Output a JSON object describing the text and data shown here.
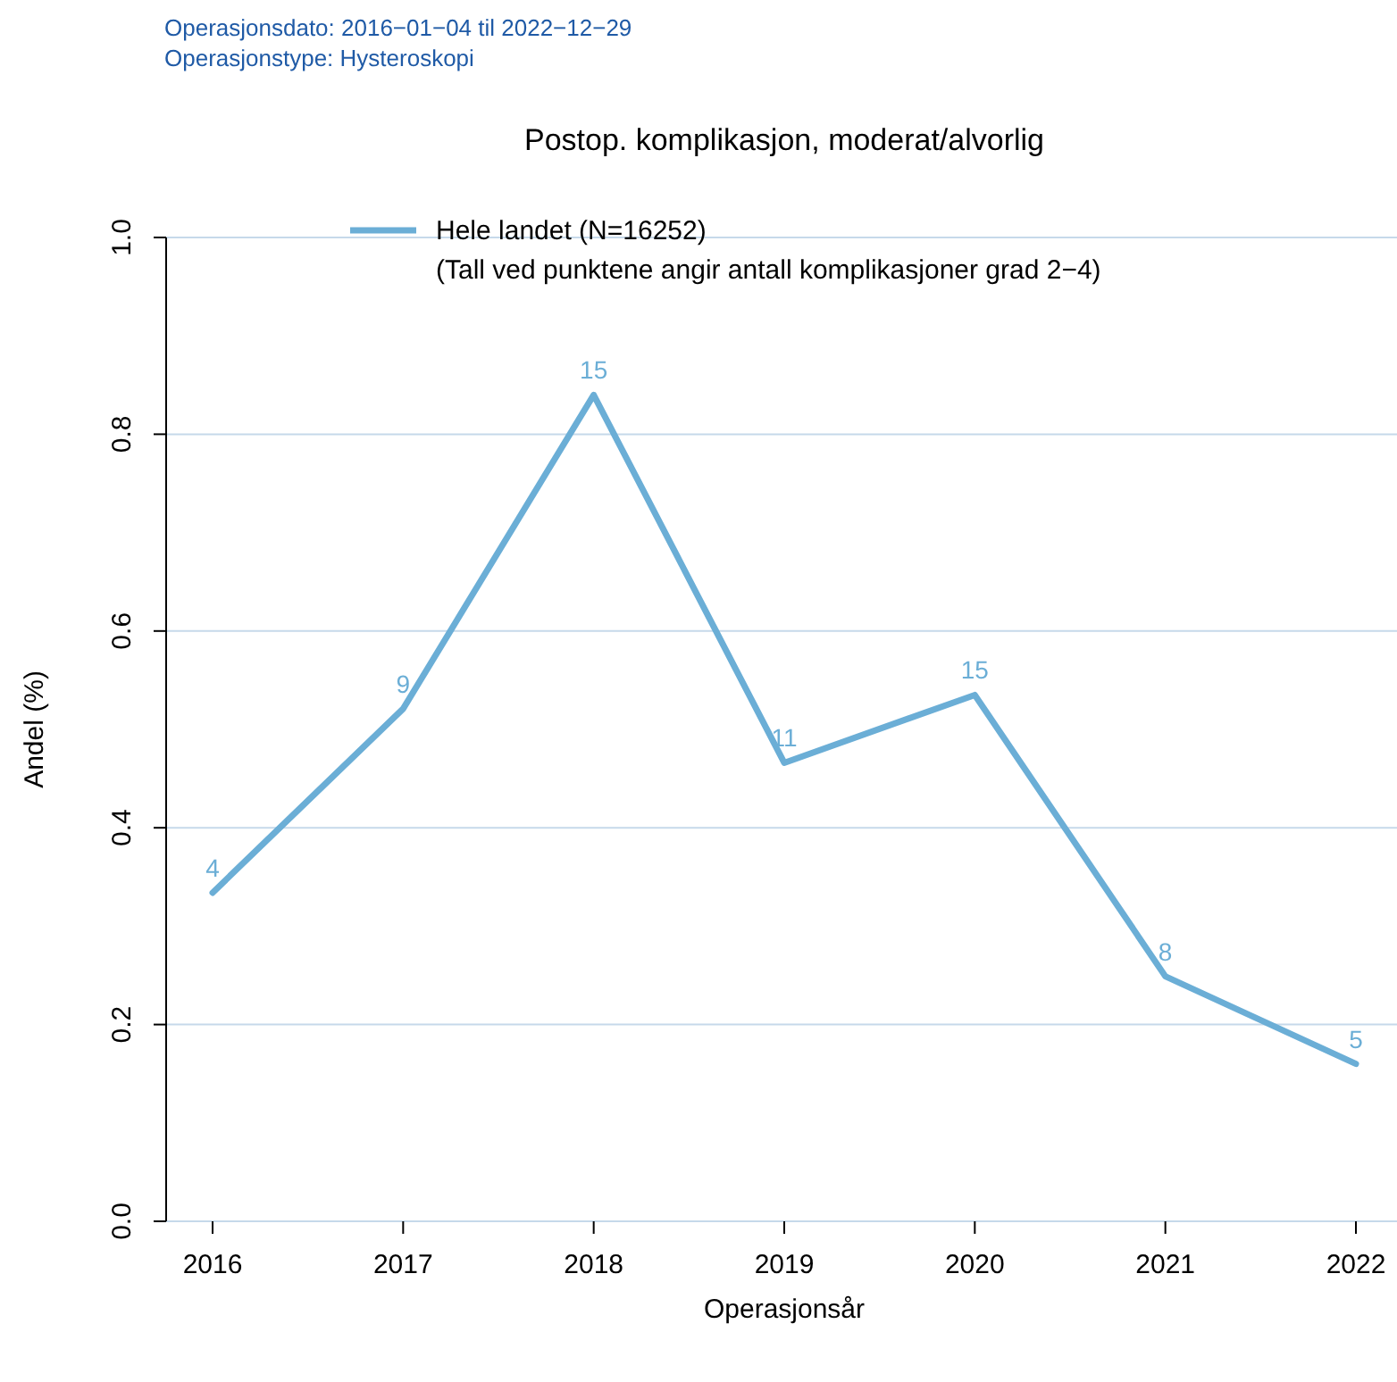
{
  "chart_data": {
    "type": "line",
    "title": "Postop. komplikasjon, moderat/alvorlig",
    "xlabel": "Operasjonsår",
    "ylabel": "Andel (%)",
    "annotations": [
      "Operasjonsdato: 2016−01−04 til 2022−12−29",
      "Operasjonstype: Hysteroskopi",
      "(Tall ved punktene angir antall komplikasjoner grad 2−4)",
      {
        "text": "4",
        "x": "2016",
        "y": 0.334
      },
      {
        "text": "9",
        "x": "2017",
        "y": 0.521
      },
      {
        "text": "15",
        "x": "2018",
        "y": 0.84
      },
      {
        "text": "11",
        "x": "2019",
        "y": 0.466
      },
      {
        "text": "15",
        "x": "2020",
        "y": 0.535
      },
      {
        "text": "8",
        "x": "2021",
        "y": 0.249
      },
      {
        "text": "5",
        "x": "2022",
        "y": 0.16
      }
    ],
    "categories": [
      "2016",
      "2017",
      "2018",
      "2019",
      "2020",
      "2021",
      "2022"
    ],
    "series": [
      {
        "name": "Hele landet (N=16252)",
        "color": "#6baed6",
        "values": [
          0.334,
          0.521,
          0.84,
          0.466,
          0.535,
          0.249,
          0.16
        ]
      }
    ],
    "ylim": [
      0,
      1
    ],
    "yticks": [
      {
        "value": 0,
        "label": "0.0"
      },
      {
        "value": 0.2,
        "label": "0.2"
      },
      {
        "value": 0.4,
        "label": "0.4"
      },
      {
        "value": 0.6,
        "label": "0.6"
      },
      {
        "value": 0.8,
        "label": "0.8"
      },
      {
        "value": 1,
        "label": "1.0"
      }
    ],
    "grid": "y",
    "legend": "top"
  }
}
